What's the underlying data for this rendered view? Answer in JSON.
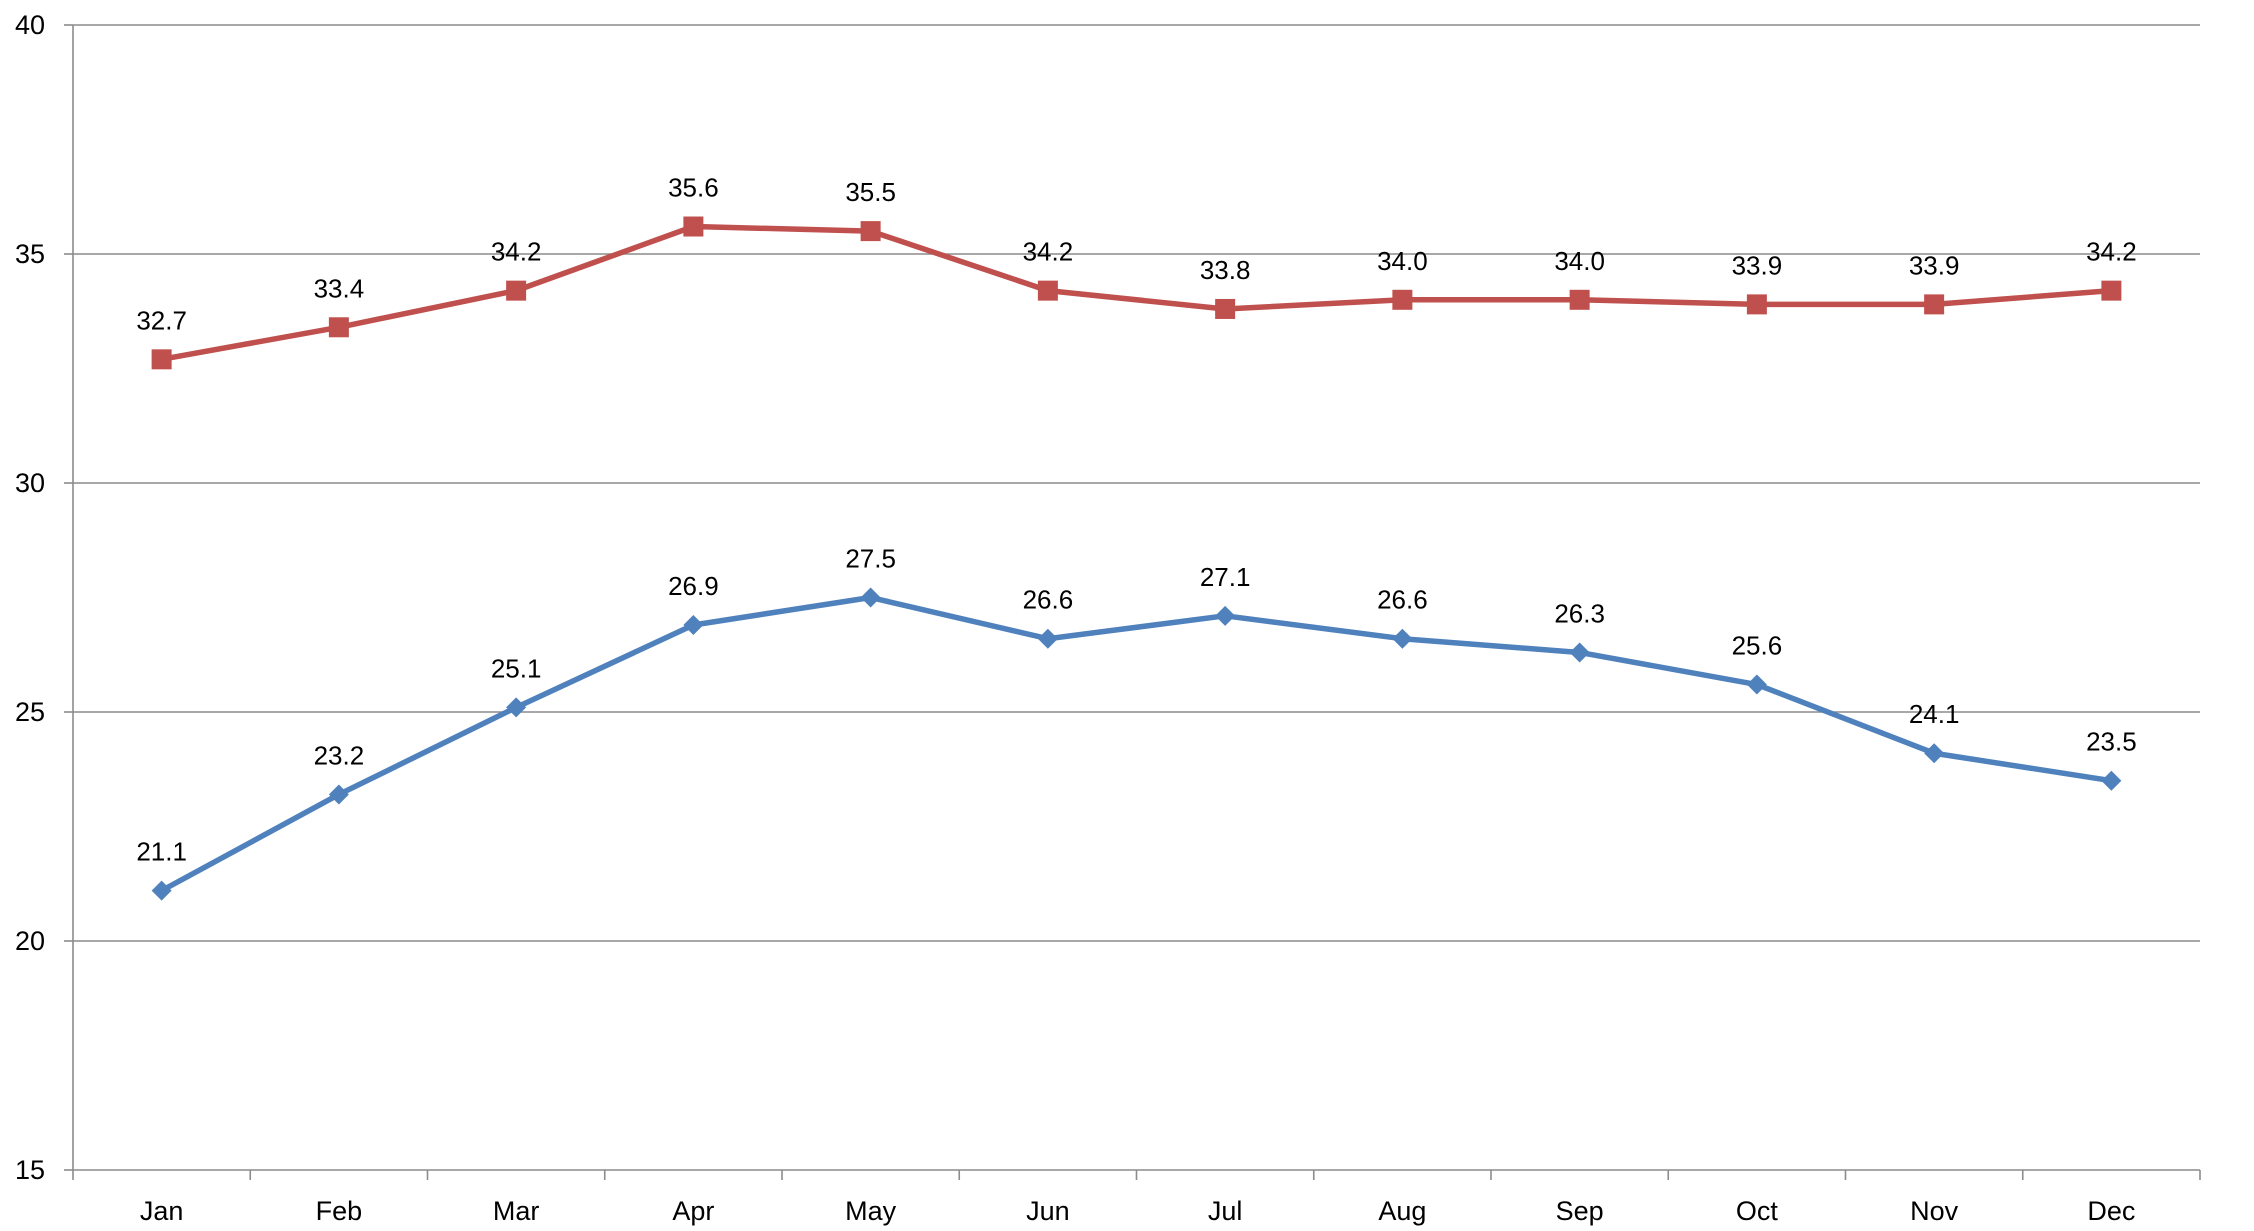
{
  "chart_data": {
    "type": "line",
    "title": "",
    "xlabel": "",
    "ylabel": "",
    "categories": [
      "Jan",
      "Feb",
      "Mar",
      "Apr",
      "May",
      "Jun",
      "Jul",
      "Aug",
      "Sep",
      "Oct",
      "Nov",
      "Dec"
    ],
    "ylim": [
      15,
      40
    ],
    "yticks": [
      15,
      20,
      25,
      30,
      35,
      40
    ],
    "grid": true,
    "legend": "none",
    "series": [
      {
        "name": "Series 1",
        "color": "#4F81BD",
        "marker": "diamond",
        "values": [
          21.1,
          23.2,
          25.1,
          26.9,
          27.5,
          26.6,
          27.1,
          26.6,
          26.3,
          25.6,
          24.1,
          23.5
        ],
        "labels": [
          "21.1",
          "23.2",
          "25.1",
          "26.9",
          "27.5",
          "26.6",
          "27.1",
          "26.6",
          "26.3",
          "25.6",
          "24.1",
          "23.5"
        ]
      },
      {
        "name": "Series 2",
        "color": "#C0504D",
        "marker": "square",
        "values": [
          32.7,
          33.4,
          34.2,
          35.6,
          35.5,
          34.2,
          33.8,
          34.0,
          34.0,
          33.9,
          33.9,
          34.2
        ],
        "labels": [
          "32.7",
          "33.4",
          "34.2",
          "35.6",
          "35.5",
          "34.2",
          "33.8",
          "34.0",
          "34.0",
          "33.9",
          "33.9",
          "34.2"
        ]
      }
    ]
  }
}
